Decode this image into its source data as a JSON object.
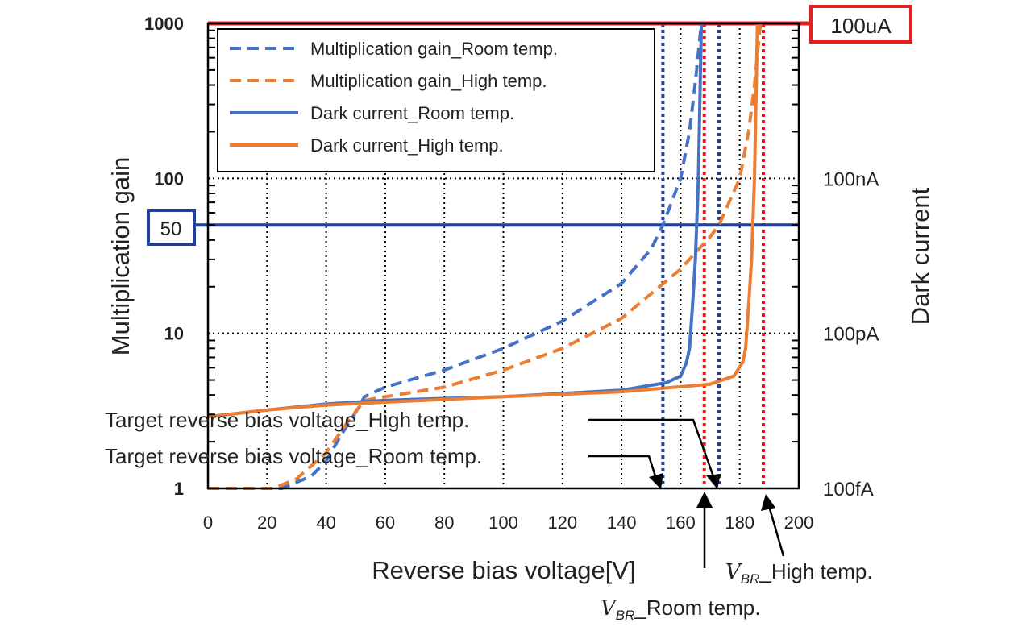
{
  "chart_data": {
    "type": "line",
    "xlabel": "Reverse bias voltage[V]",
    "ylabel": "Multiplication gain",
    "y2label": "Dark current",
    "xlim": [
      0,
      200
    ],
    "ylim": [
      1,
      1000
    ],
    "yscale": "log",
    "grid": true,
    "x_ticks": [
      "0",
      "20",
      "40",
      "60",
      "80",
      "100",
      "120",
      "140",
      "160",
      "180",
      "200"
    ],
    "y_ticks": [
      "1",
      "10",
      "100",
      "1000"
    ],
    "y2_ticks": [
      "100fA",
      "100pA",
      "100nA",
      "100uA"
    ],
    "legend_position": "top-left",
    "series": [
      {
        "name": "Multiplication gain_Room temp.",
        "color": "#4472c4",
        "style": "dashed",
        "x": [
          0,
          25,
          35,
          40,
          45,
          50,
          53,
          60,
          80,
          100,
          120,
          140,
          150,
          154,
          160,
          163,
          165,
          167
        ],
        "y": [
          1,
          1,
          1.2,
          1.5,
          2.2,
          3.1,
          3.9,
          4.5,
          5.8,
          8,
          12,
          21,
          35,
          50,
          100,
          200,
          420,
          1000
        ]
      },
      {
        "name": "Multiplication gain_High temp.",
        "color": "#ed7d31",
        "style": "dashed",
        "x": [
          0,
          22,
          30,
          40,
          48,
          53,
          60,
          80,
          100,
          120,
          140,
          160,
          170,
          173,
          180,
          183,
          185,
          187
        ],
        "y": [
          1,
          1,
          1.15,
          1.7,
          2.8,
          3.7,
          3.9,
          4.5,
          5.8,
          8,
          12.5,
          26,
          42,
          50,
          100,
          200,
          400,
          1000
        ]
      },
      {
        "name": "Dark current_Room temp.",
        "color": "#4472c4",
        "style": "solid",
        "x": [
          0,
          20,
          40,
          60,
          100,
          140,
          155,
          160,
          162,
          163,
          164,
          165,
          166,
          167
        ],
        "y": [
          2.9,
          3.2,
          3.5,
          3.7,
          3.9,
          4.3,
          4.8,
          5.3,
          6.5,
          8,
          15,
          30,
          100,
          1000
        ]
      },
      {
        "name": "Dark current_High temp.",
        "color": "#ed7d31",
        "style": "solid",
        "x": [
          0,
          20,
          40,
          60,
          100,
          140,
          170,
          178,
          181,
          182,
          183,
          184,
          185,
          186
        ],
        "y": [
          2.9,
          3.2,
          3.45,
          3.6,
          3.9,
          4.2,
          4.7,
          5.3,
          6.5,
          8,
          15,
          30,
          100,
          1000
        ]
      }
    ],
    "reference_lines": {
      "gain_50": {
        "value": 50,
        "label": "50",
        "color": "#1f3f99"
      },
      "current_limit": {
        "value": 1000,
        "label": "100uA",
        "color": "#e02020"
      },
      "vertical": [
        {
          "x": 154,
          "color": "#1f3f99"
        },
        {
          "x": 168,
          "color": "#e02020"
        },
        {
          "x": 173,
          "color": "#1f3f99"
        },
        {
          "x": 188,
          "color": "#e02020"
        }
      ]
    },
    "annotations": {
      "target_high": "Target reverse bias voltage_High temp.",
      "target_room": "Target reverse bias voltage_Room temp.",
      "vbr_room_sub": "BR",
      "vbr_room": "_Room temp.",
      "vbr_high_sub": "BR",
      "vbr_high": "_High temp.",
      "v_symbol": "V"
    }
  }
}
